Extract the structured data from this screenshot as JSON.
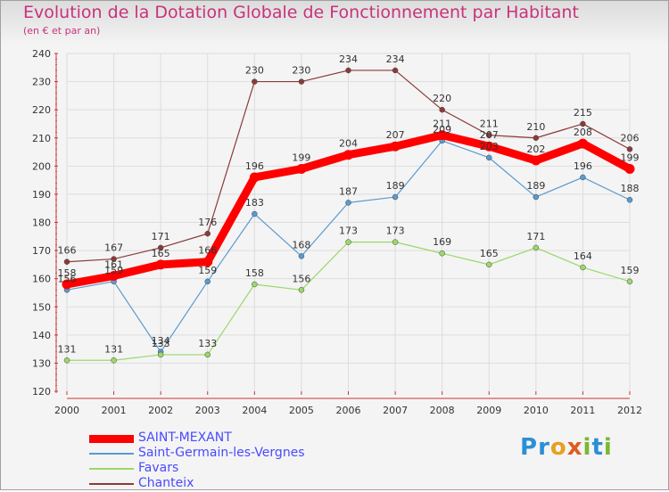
{
  "title": "Evolution de la Dotation Globale de Fonctionnement par Habitant",
  "subtitle": "(en € et par an)",
  "logo": "Proxiti",
  "colors": {
    "title": "#c8327c",
    "SAINT-MEXANT": "#ff0000",
    "Saint-Germain-les-Vergnes": "#5a9ad0",
    "Favars": "#9ad86a",
    "Chanteix": "#8c3a3a",
    "legend_text": "#4a4aff"
  },
  "chart_data": {
    "type": "line",
    "title": "Evolution de la Dotation Globale de Fonctionnement par Habitant",
    "subtitle": "(en € et par an)",
    "x": [
      "2000",
      "2001",
      "2002",
      "2003",
      "2004",
      "2005",
      "2006",
      "2007",
      "2008",
      "2009",
      "2010",
      "2011",
      "2012"
    ],
    "ylim": [
      120,
      240
    ],
    "yticks": [
      120,
      130,
      140,
      150,
      160,
      170,
      180,
      190,
      200,
      210,
      220,
      230,
      240
    ],
    "grid": true,
    "legend_position": "bottom-left",
    "series": [
      {
        "name": "SAINT-MEXANT",
        "values": [
          158,
          161,
          165,
          166,
          196,
          199,
          204,
          207,
          211,
          207,
          202,
          208,
          199
        ]
      },
      {
        "name": "Saint-Germain-les-Vergnes",
        "values": [
          156,
          159,
          134,
          159,
          183,
          168,
          187,
          189,
          209,
          203,
          189,
          196,
          188
        ]
      },
      {
        "name": "Favars",
        "values": [
          131,
          131,
          133,
          133,
          158,
          156,
          173,
          173,
          169,
          165,
          171,
          164,
          159
        ]
      },
      {
        "name": "Chanteix",
        "values": [
          166,
          167,
          171,
          176,
          230,
          230,
          234,
          234,
          220,
          211,
          210,
          215,
          206
        ]
      }
    ]
  }
}
